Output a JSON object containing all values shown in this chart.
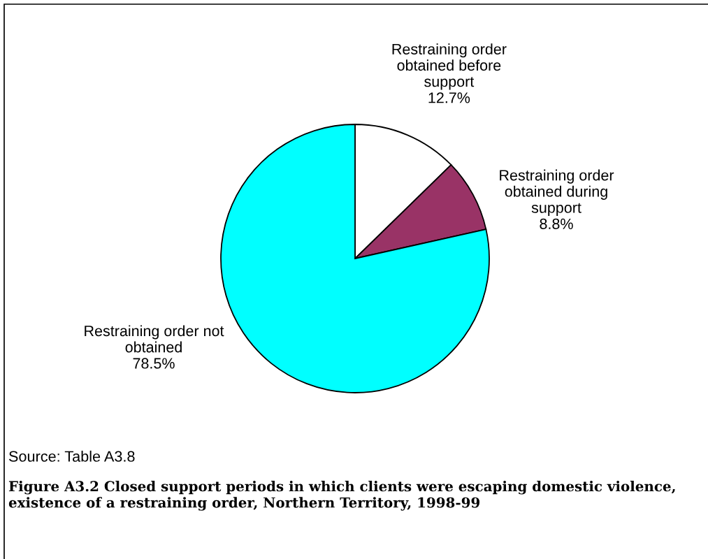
{
  "chart_data": {
    "type": "pie",
    "title": "Figure A3.2 Closed support periods in which clients were escaping domestic violence,\nexistence of a restraining order, Northern Territory, 1998-99",
    "categories": [
      "Restraining order\nobtained before\nsupport",
      "Restraining order\nobtained during\nsupport",
      "Restraining order not\nobtained"
    ],
    "values": [
      12.7,
      8.8,
      78.5
    ],
    "value_labels": [
      "12.7%",
      "8.8%",
      "78.5%"
    ],
    "colors": [
      "#ffffff",
      "#993366",
      "#00ffff"
    ],
    "annotations": [
      "Source: Table A3.8"
    ]
  }
}
